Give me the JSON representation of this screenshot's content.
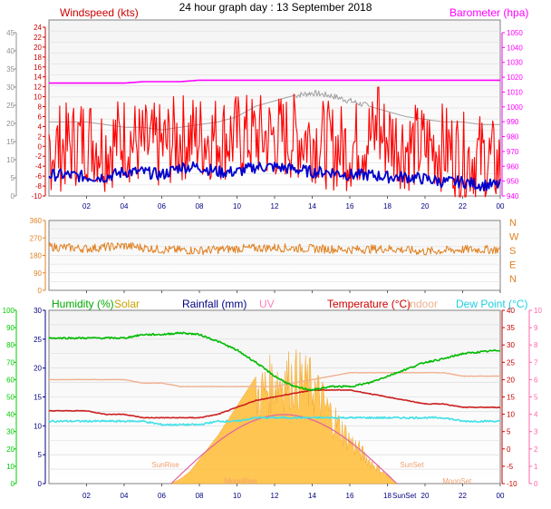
{
  "header": {
    "title": "24 hour graph day : 13 September 2018"
  },
  "panels": [
    {
      "id": "wind",
      "labels": {
        "left": "Windspeed (kts)",
        "right": "Barometer (hpa)"
      },
      "left_ticks": [
        "0",
        "5",
        "10",
        "15",
        "20",
        "25",
        "30",
        "35",
        "40",
        "45"
      ],
      "inner_ticks": [
        "-10",
        "-8",
        "-6",
        "-4",
        "-2",
        "0",
        "2",
        "4",
        "6",
        "8",
        "10",
        "12",
        "14",
        "16",
        "18",
        "20",
        "22",
        "24"
      ],
      "right_ticks": [
        "940",
        "950",
        "960",
        "970",
        "980",
        "990",
        "1000",
        "1010",
        "1020",
        "1030",
        "1040",
        "1050"
      ]
    },
    {
      "id": "direction",
      "left_ticks": [
        "0",
        "90",
        "180",
        "270",
        "360"
      ],
      "right_labels": [
        "N",
        "E",
        "S",
        "W",
        "N"
      ]
    },
    {
      "id": "climate",
      "labels": {
        "humidity": "Humidity (%)",
        "solar": "Solar",
        "rainfall": "Rainfall (mm)",
        "uv": "UV",
        "temperature": "Temperature (°C)",
        "indoor": "Indoor",
        "dewpoint": "Dew Point (°C)"
      },
      "left_ticks": [
        "0",
        "10",
        "20",
        "30",
        "40",
        "50",
        "60",
        "70",
        "80",
        "90",
        "100"
      ],
      "inner_ticks": [
        "0",
        "5",
        "10",
        "15",
        "20",
        "25",
        "30"
      ],
      "right_ticks": [
        "-10",
        "-5",
        "0",
        "5",
        "10",
        "15",
        "20",
        "25",
        "30",
        "35",
        "40"
      ],
      "uv_ticks": [
        "0",
        "1",
        "2",
        "3",
        "4",
        "5",
        "6",
        "7",
        "8",
        "9",
        "10"
      ],
      "annotations": {
        "sunrise": "SunRise",
        "sunset": "SunSet",
        "moonrise": "MoonRise",
        "moonset": "MoonSet",
        "sunset_axis": "SunSet"
      }
    }
  ],
  "x_ticks": [
    "02",
    "04",
    "06",
    "08",
    "10",
    "12",
    "14",
    "16",
    "18",
    "20",
    "22",
    "00"
  ],
  "colors": {
    "windspeed": "#ff0000",
    "barometer": "#ff00ff",
    "gust_avg": "#0000cc",
    "pressure_grey": "#a0a0a0",
    "direction": "#e08020",
    "humidity": "#00bb00",
    "solar": "#ffc040",
    "uv": "#ff80c0",
    "temperature": "#cc2020",
    "indoor": "#f0b090",
    "dewpoint": "#40e0e8",
    "rain_label": "#000080",
    "uv_axis": "#ff66aa",
    "wind_label": "#cc0000"
  },
  "chart_data": [
    {
      "type": "line",
      "x": [
        0,
        1,
        2,
        3,
        4,
        5,
        6,
        7,
        8,
        9,
        10,
        11,
        12,
        13,
        14,
        15,
        16,
        17,
        18,
        19,
        20,
        21,
        22,
        23,
        24
      ],
      "series": [
        {
          "name": "Windspeed (kts)",
          "values": [
            4,
            4,
            5,
            4,
            5,
            4,
            4,
            5,
            5,
            5,
            5,
            5,
            5,
            5,
            5,
            4,
            4,
            5,
            5,
            4,
            4,
            4,
            3,
            3,
            2
          ]
        },
        {
          "name": "Barometer (hpa)",
          "values": [
            1016,
            1016,
            1016,
            1016,
            1016,
            1017,
            1017,
            1017,
            1018,
            1018,
            1018,
            1018,
            1018,
            1018,
            1018,
            1018,
            1018,
            1018,
            1018,
            1018,
            1018,
            1018,
            1018,
            1018,
            1018
          ]
        }
      ],
      "ylim": [
        0,
        45
      ],
      "y2lim": [
        940,
        1050
      ]
    },
    {
      "type": "line",
      "x": [
        0,
        2,
        4,
        6,
        8,
        10,
        12,
        14,
        16,
        18,
        20,
        22,
        24
      ],
      "series": [
        {
          "name": "Wind direction",
          "values": [
            225,
            215,
            230,
            210,
            205,
            215,
            220,
            215,
            210,
            215,
            200,
            210,
            210
          ]
        }
      ],
      "ylim": [
        0,
        360
      ]
    },
    {
      "type": "line",
      "x": [
        0,
        1,
        2,
        3,
        4,
        5,
        6,
        7,
        8,
        9,
        10,
        11,
        12,
        13,
        14,
        15,
        16,
        17,
        18,
        19,
        20,
        21,
        22,
        23,
        24
      ],
      "series": [
        {
          "name": "Humidity (%)",
          "values": [
            84,
            84,
            84,
            84,
            84,
            86,
            86,
            87,
            86,
            82,
            77,
            70,
            62,
            56,
            54,
            56,
            56,
            58,
            62,
            66,
            70,
            72,
            75,
            76,
            77
          ]
        },
        {
          "name": "Temperature (°C)",
          "values": [
            11,
            11,
            11,
            10,
            10,
            9,
            9,
            9,
            9,
            10,
            12,
            14,
            15,
            16,
            17,
            17,
            17,
            16,
            15,
            14,
            13,
            13,
            12,
            12,
            12
          ]
        },
        {
          "name": "Dew Point (°C)",
          "values": [
            8,
            8,
            8,
            8,
            8,
            8,
            7,
            7,
            7,
            8,
            8,
            9,
            9,
            9,
            9,
            9,
            9,
            9,
            9,
            9,
            9,
            9,
            8,
            8,
            8
          ]
        },
        {
          "name": "Indoor",
          "values": [
            20,
            20,
            20,
            20,
            20,
            19,
            19,
            18,
            18,
            18,
            18,
            18,
            18,
            19,
            20,
            21,
            22,
            22,
            22,
            22,
            22,
            22,
            21,
            21,
            21
          ]
        }
      ],
      "ylim": [
        -10,
        40
      ]
    },
    {
      "type": "area",
      "x": [
        6.5,
        7,
        7.5,
        8,
        9,
        10,
        11,
        12,
        13,
        14,
        15,
        16,
        17,
        18,
        18.5
      ],
      "series": [
        {
          "name": "Solar",
          "values": [
            0,
            2,
            5,
            10,
            20,
            32,
            44,
            53,
            54,
            50,
            35,
            22,
            12,
            4,
            0
          ]
        }
      ],
      "ylim": [
        0,
        100
      ]
    }
  ]
}
